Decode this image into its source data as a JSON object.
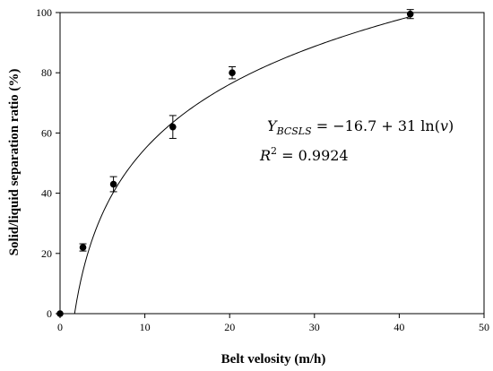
{
  "chart_data": {
    "type": "scatter",
    "title": "",
    "xlabel": "Belt velosity (m/h)",
    "ylabel": "Solid/liquid separation ratio (%)",
    "xlim": [
      0,
      50
    ],
    "ylim": [
      0,
      100
    ],
    "xticks": [
      0,
      10,
      20,
      30,
      40,
      50
    ],
    "yticks": [
      0,
      20,
      40,
      60,
      80,
      100
    ],
    "grid": false,
    "series": [
      {
        "marker": "circle",
        "color": "#000000",
        "points": [
          {
            "x": 0,
            "y": 0,
            "err": 0
          },
          {
            "x": 2.7,
            "y": 22,
            "err": 1.2
          },
          {
            "x": 6.3,
            "y": 43,
            "err": 2.5
          },
          {
            "x": 13.3,
            "y": 62,
            "err": 3.8
          },
          {
            "x": 20.3,
            "y": 80,
            "err": 2.0
          },
          {
            "x": 41.3,
            "y": 99.5,
            "err": 1.5
          }
        ]
      }
    ],
    "fit": {
      "equation": "Y_BCSLS = −16.7 + 31 ln(v)",
      "intercept": -16.7,
      "coefficient": 31,
      "r_squared": "R² = 0.9924"
    }
  },
  "annotation": {
    "y_sym": "Y",
    "y_sub": "BCSLS",
    "rhs": " = −16.7 + 31 ln(",
    "v": "v",
    "close": ")",
    "r_sym": "R",
    "r_sup": "2",
    "r_rhs": " = 0.9924"
  }
}
